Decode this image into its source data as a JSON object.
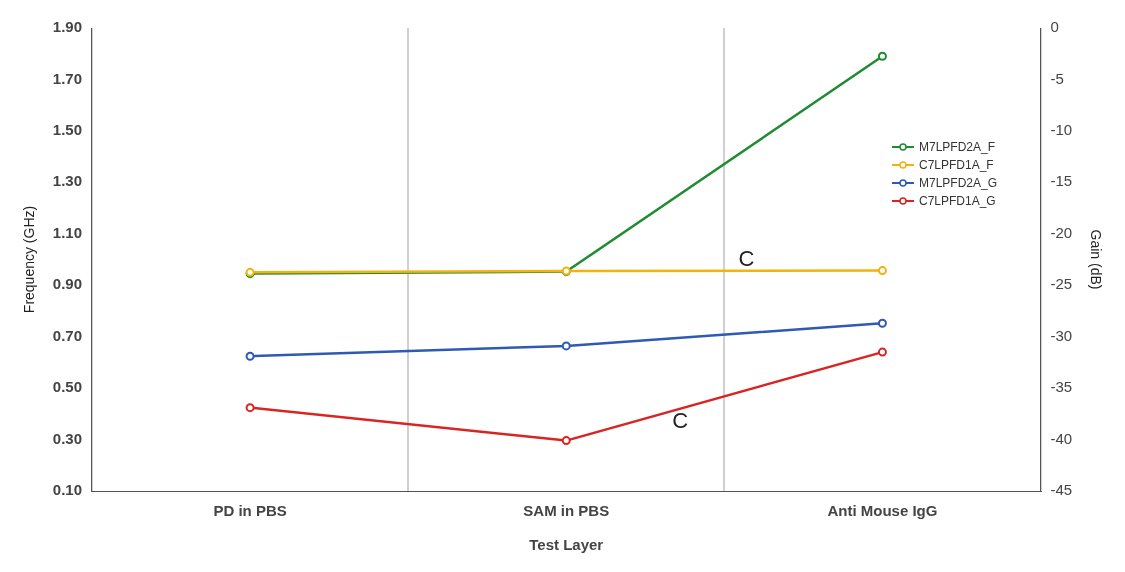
{
  "chart_data": {
    "type": "line",
    "xlabel": "Test Layer",
    "ylabel": "Frequency (GHz)",
    "y2label": "Gain (dB)",
    "categories": [
      "PD in PBS",
      "SAM in PBS",
      "Anti Mouse IgG"
    ],
    "series": [
      {
        "name": "M7LPFD2A_F",
        "color": "#1e8c32",
        "values": [
          0.945,
          0.953,
          1.79
        ]
      },
      {
        "name": "C7LPFD1A_F",
        "color": "#f2b20f",
        "values": [
          0.95,
          0.955,
          0.957
        ]
      },
      {
        "name": "M7LPFD2A_G",
        "color": "#2e5ab4",
        "values": [
          -31.9,
          -30.9,
          -28.7
        ],
        "axis": "y2"
      },
      {
        "name": "C7LPFD1A_G",
        "color": "#d92424",
        "values": [
          -36.9,
          -40.1,
          -31.5
        ],
        "axis": "y2"
      }
    ],
    "ylim": [
      0.1,
      1.9
    ],
    "yticks": [
      {
        "value": 0.1,
        "label": "0.10"
      },
      {
        "value": 0.3,
        "label": "0.30"
      },
      {
        "value": 0.5,
        "label": "0.50"
      },
      {
        "value": 0.7,
        "label": "0.70"
      },
      {
        "value": 0.9,
        "label": "0.90"
      },
      {
        "value": 1.1,
        "label": "1.10"
      },
      {
        "value": 1.3,
        "label": "1.30"
      },
      {
        "value": 1.5,
        "label": "1.50"
      },
      {
        "value": 1.7,
        "label": "1.70"
      },
      {
        "value": 1.9,
        "label": "1.90"
      }
    ],
    "y2lim": [
      -45,
      0
    ],
    "y2ticks": [
      -45,
      -40,
      -35,
      -30,
      -25,
      -20,
      -15,
      -10,
      -5,
      0
    ],
    "annotations": [
      "C",
      "C"
    ],
    "grid": "x",
    "legend": "top right",
    "marker": "circle",
    "line_style": "solid"
  }
}
